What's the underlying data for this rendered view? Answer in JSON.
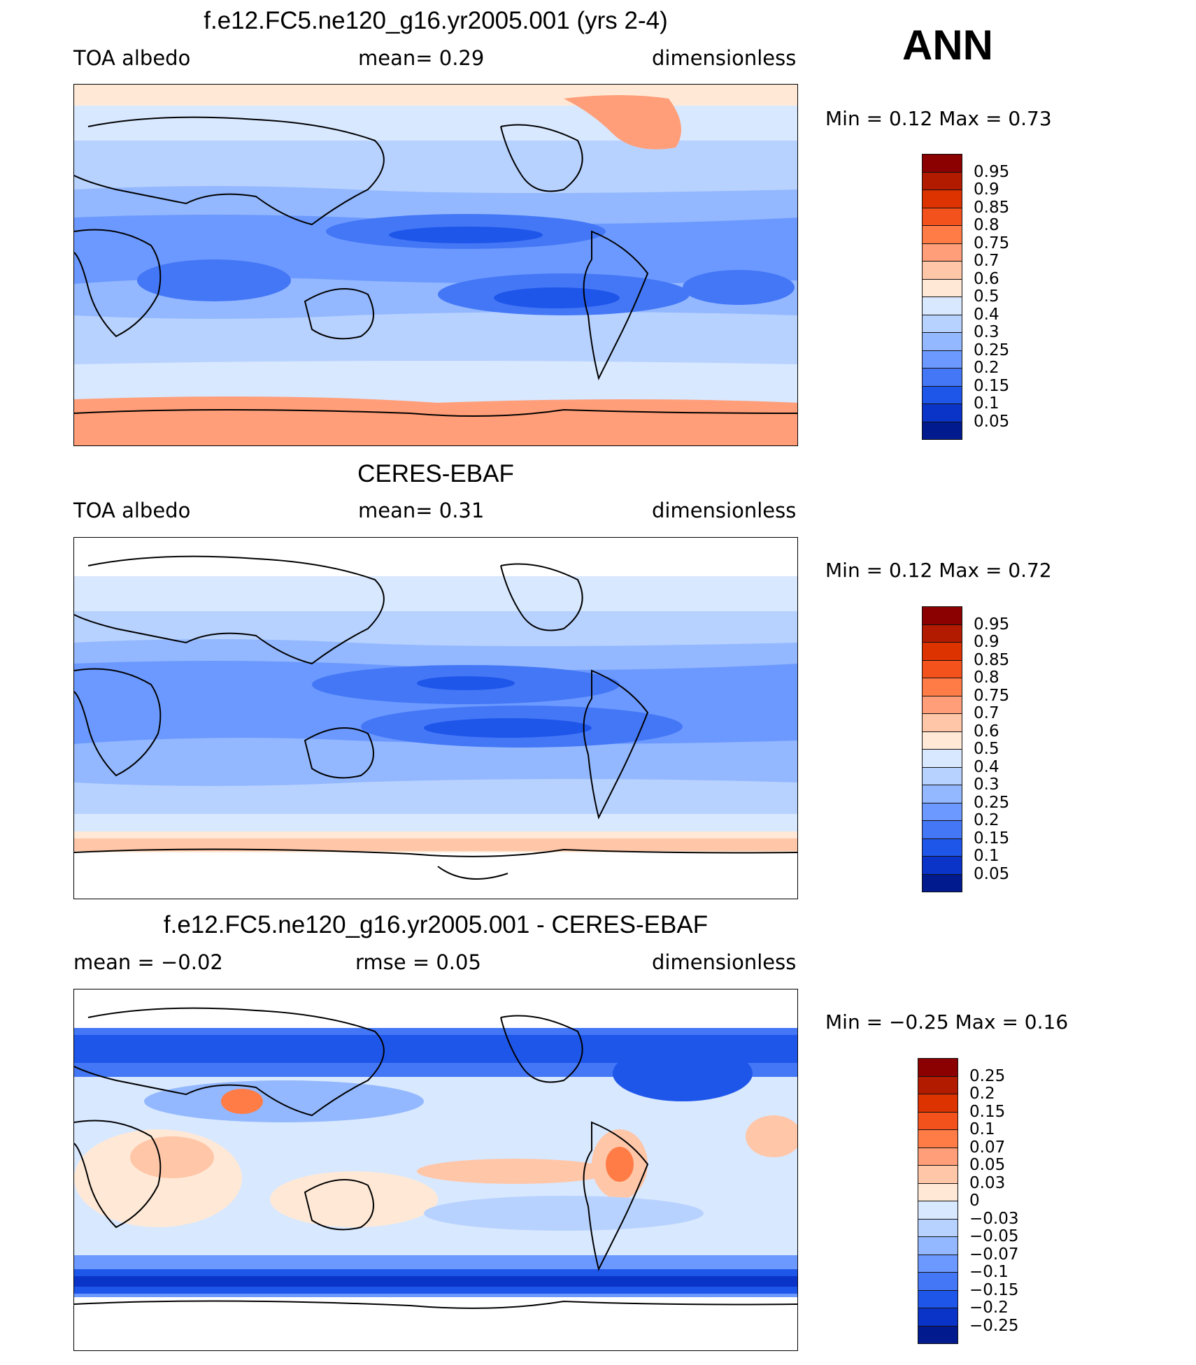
{
  "season": "ANN",
  "panels": [
    {
      "title": "f.e12.FC5.ne120_g16.yr2005.001 (yrs 2-4)",
      "left": "TOA  albedo",
      "mid": "mean=     0.29",
      "right": "dimensionless",
      "minmax": "Min  =      0.12  Max  =      0.73",
      "colorbar": {
        "labels": [
          "0.95",
          "0.9",
          "0.85",
          "0.8",
          "0.75",
          "0.7",
          "0.6",
          "0.5",
          "0.4",
          "0.3",
          "0.25",
          "0.2",
          "0.15",
          "0.1",
          "0.05"
        ],
        "colors": [
          "#8b0000",
          "#b31b00",
          "#dc3300",
          "#f4521c",
          "#ff7c46",
          "#ff9e78",
          "#ffc6a8",
          "#ffe9d6",
          "#d8e8ff",
          "#b8d2ff",
          "#93b8ff",
          "#6c99ff",
          "#4477f6",
          "#1f56ea",
          "#0a33c8",
          "#011a8e"
        ]
      }
    },
    {
      "title": "CERES-EBAF",
      "left": "TOA  albedo",
      "mid": "mean=     0.31",
      "right": "dimensionless",
      "minmax": "Min  =      0.12  Max  =      0.72",
      "colorbar": {
        "labels": [
          "0.95",
          "0.9",
          "0.85",
          "0.8",
          "0.75",
          "0.7",
          "0.6",
          "0.5",
          "0.4",
          "0.3",
          "0.25",
          "0.2",
          "0.15",
          "0.1",
          "0.05"
        ],
        "colors": [
          "#8b0000",
          "#b31b00",
          "#dc3300",
          "#f4521c",
          "#ff7c46",
          "#ff9e78",
          "#ffc6a8",
          "#ffe9d6",
          "#d8e8ff",
          "#b8d2ff",
          "#93b8ff",
          "#6c99ff",
          "#4477f6",
          "#1f56ea",
          "#0a33c8",
          "#011a8e"
        ]
      }
    },
    {
      "title": "f.e12.FC5.ne120_g16.yr2005.001 - CERES-EBAF",
      "left": "mean  =   −0.02",
      "mid": "rmse  =     0.05",
      "right": "dimensionless",
      "minmax": "Min  =    −0.25  Max  =      0.16",
      "colorbar": {
        "labels": [
          "0.25",
          "0.2",
          "0.15",
          "0.1",
          "0.07",
          "0.05",
          "0.03",
          "0",
          "−0.03",
          "−0.05",
          "−0.07",
          "−0.1",
          "−0.15",
          "−0.2",
          "−0.25"
        ],
        "colors": [
          "#8b0000",
          "#b31b00",
          "#dc3300",
          "#f4521c",
          "#ff7c46",
          "#ff9e78",
          "#ffc6a8",
          "#ffe9d6",
          "#d8e8ff",
          "#b8d2ff",
          "#93b8ff",
          "#6c99ff",
          "#4477f6",
          "#1f56ea",
          "#0a33c8",
          "#011a8e"
        ]
      }
    }
  ]
}
